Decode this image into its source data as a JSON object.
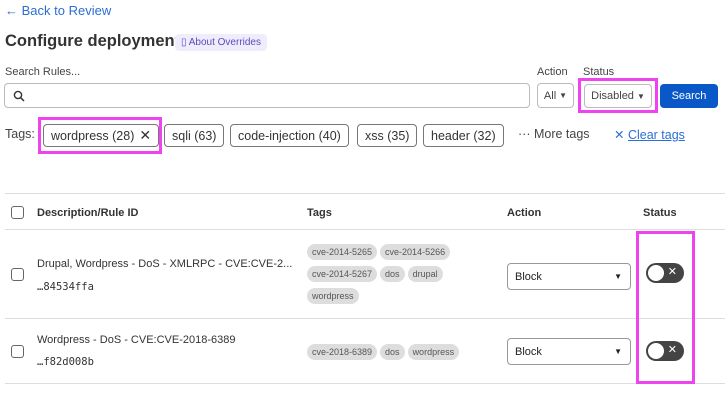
{
  "back_link": "← Back to Review",
  "page_title": "Configure deployment",
  "about_overrides": "About Overrides",
  "search": {
    "label": "Search Rules...",
    "value": "",
    "placeholder": ""
  },
  "filters": {
    "action_label": "Action",
    "action_value": "All",
    "status_label": "Status",
    "status_value": "Disabled",
    "search_button": "Search"
  },
  "tags": {
    "label": "Tags:",
    "chips": [
      "wordpress (28)",
      "sqli (63)",
      "code-injection (40)",
      "xss (35)",
      "header (32)"
    ],
    "selected": "wordpress (28)",
    "more": "More tags",
    "clear": "Clear tags"
  },
  "table": {
    "headers": [
      "Description/Rule ID",
      "Tags",
      "Action",
      "Status"
    ],
    "rows": [
      {
        "description": "Drupal, Wordpress - DoS - XMLRPC - CVE:CVE-2...",
        "rule_id": "…84534ffa",
        "tags": [
          "cve-2014-5265",
          "cve-2014-5266",
          "cve-2014-5267",
          "dos",
          "drupal",
          "wordpress"
        ],
        "action": "Block",
        "enabled": false
      },
      {
        "description": "Wordpress - DoS - CVE:CVE-2018-6389",
        "rule_id": "…f82d008b",
        "tags": [
          "cve-2018-6389",
          "dos",
          "wordpress"
        ],
        "action": "Block",
        "enabled": false
      }
    ]
  },
  "colors": {
    "accent": "#0a58c8",
    "link": "#2c6ed5",
    "highlight": "#ee44ee"
  }
}
